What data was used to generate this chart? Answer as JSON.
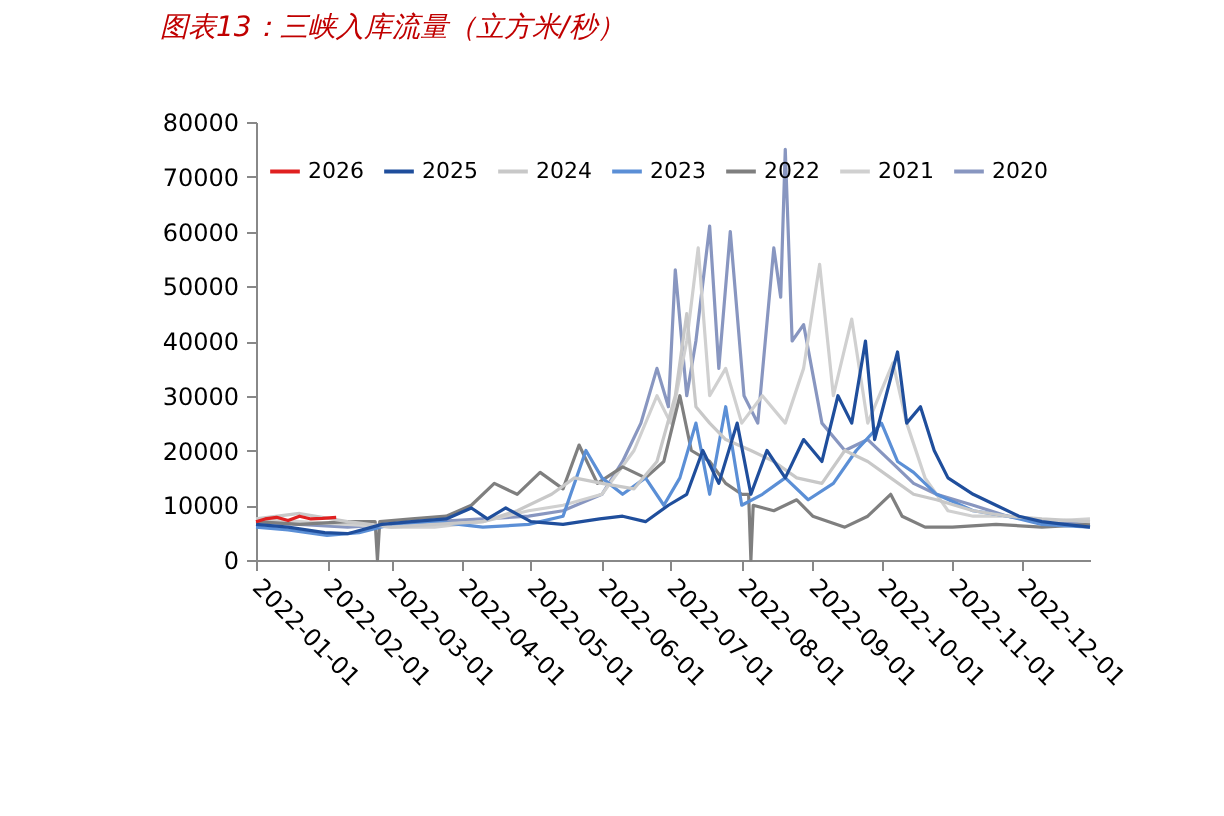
{
  "chart_data": {
    "type": "line",
    "title": "图表13：三峡入库流量（立方米/秒）",
    "xlim": [
      "2022-01-01",
      "2022-12-31"
    ],
    "xticks": [
      "2022-01-01",
      "2022-02-01",
      "2022-03-01",
      "2022-04-01",
      "2022-05-01",
      "2022-06-01",
      "2022-07-01",
      "2022-08-01",
      "2022-09-01",
      "2022-10-01",
      "2022-11-01",
      "2022-12-01"
    ],
    "ylim": [
      0,
      80000
    ],
    "yticks": [
      0,
      10000,
      20000,
      30000,
      40000,
      50000,
      60000,
      70000,
      80000
    ],
    "grid": false,
    "legend": "top",
    "marker": "none",
    "line_style": "solid",
    "series": [
      {
        "name": "2026",
        "color": "#e02020",
        "x": [
          "2022-01-01",
          "2022-01-05",
          "2022-01-10",
          "2022-01-15",
          "2022-01-20",
          "2022-01-25",
          "2022-01-30",
          "2022-02-05"
        ],
        "values": [
          7000,
          7500,
          7800,
          7200,
          8000,
          7500,
          7600,
          7800
        ]
      },
      {
        "name": "2025",
        "color": "#1f4e9c",
        "x": [
          "2022-01-01",
          "2022-01-15",
          "2022-01-31",
          "2022-02-10",
          "2022-02-25",
          "2022-03-10",
          "2022-03-25",
          "2022-04-05",
          "2022-04-12",
          "2022-04-20",
          "2022-05-01",
          "2022-05-15",
          "2022-05-31",
          "2022-06-10",
          "2022-06-20",
          "2022-06-30",
          "2022-07-08",
          "2022-07-15",
          "2022-07-22",
          "2022-07-30",
          "2022-08-05",
          "2022-08-12",
          "2022-08-20",
          "2022-08-28",
          "2022-09-05",
          "2022-09-12",
          "2022-09-18",
          "2022-09-24",
          "2022-09-28",
          "2022-10-03",
          "2022-10-08",
          "2022-10-12",
          "2022-10-18",
          "2022-10-24",
          "2022-10-30",
          "2022-11-10",
          "2022-11-20",
          "2022-11-30",
          "2022-12-10",
          "2022-12-20",
          "2022-12-31"
        ],
        "values": [
          6500,
          6000,
          5000,
          4800,
          6500,
          7000,
          7500,
          9500,
          7500,
          9500,
          7000,
          6500,
          7500,
          8000,
          7000,
          10000,
          12000,
          20000,
          14000,
          25000,
          12000,
          20000,
          15000,
          22000,
          18000,
          30000,
          25000,
          40000,
          22000,
          30000,
          38000,
          25000,
          28000,
          20000,
          15000,
          12000,
          10000,
          8000,
          7000,
          6500,
          6000
        ]
      },
      {
        "name": "2024",
        "color": "#c8c8c8",
        "x": [
          "2022-01-01",
          "2022-01-20",
          "2022-02-10",
          "2022-03-01",
          "2022-03-20",
          "2022-04-10",
          "2022-04-25",
          "2022-05-10",
          "2022-05-20",
          "2022-06-01",
          "2022-06-15",
          "2022-06-25",
          "2022-07-03",
          "2022-07-08",
          "2022-07-12",
          "2022-07-18",
          "2022-07-25",
          "2022-08-05",
          "2022-08-15",
          "2022-08-25",
          "2022-09-05",
          "2022-09-15",
          "2022-09-25",
          "2022-10-05",
          "2022-10-15",
          "2022-10-25",
          "2022-11-10",
          "2022-11-25",
          "2022-12-10",
          "2022-12-31"
        ],
        "values": [
          7500,
          8500,
          7000,
          6000,
          6500,
          7000,
          9000,
          12000,
          15000,
          14000,
          13000,
          18000,
          30000,
          45000,
          28000,
          25000,
          22000,
          20000,
          18000,
          15000,
          14000,
          20000,
          18000,
          15000,
          12000,
          11000,
          9000,
          8000,
          7500,
          7000
        ]
      },
      {
        "name": "2023",
        "color": "#5b8fd6",
        "x": [
          "2022-01-01",
          "2022-01-15",
          "2022-02-01",
          "2022-02-15",
          "2022-03-01",
          "2022-03-20",
          "2022-04-10",
          "2022-04-30",
          "2022-05-15",
          "2022-05-25",
          "2022-06-01",
          "2022-06-10",
          "2022-06-20",
          "2022-06-28",
          "2022-07-05",
          "2022-07-12",
          "2022-07-18",
          "2022-07-25",
          "2022-08-01",
          "2022-08-10",
          "2022-08-20",
          "2022-08-30",
          "2022-09-10",
          "2022-09-20",
          "2022-10-01",
          "2022-10-08",
          "2022-10-15",
          "2022-10-25",
          "2022-11-10",
          "2022-11-25",
          "2022-12-10",
          "2022-12-31"
        ],
        "values": [
          6000,
          5500,
          4500,
          5000,
          6500,
          7000,
          6000,
          6500,
          8000,
          20000,
          15000,
          12000,
          15000,
          10000,
          15000,
          25000,
          12000,
          28000,
          10000,
          12000,
          15000,
          11000,
          14000,
          20000,
          25000,
          18000,
          16000,
          12000,
          9000,
          8000,
          6500,
          6000
        ]
      },
      {
        "name": "2022",
        "color": "#7f7f7f",
        "x": [
          "2022-01-01",
          "2022-01-20",
          "2022-02-10",
          "2022-02-22",
          "2022-02-23",
          "2022-02-24",
          "2022-03-10",
          "2022-03-25",
          "2022-04-05",
          "2022-04-15",
          "2022-04-25",
          "2022-05-05",
          "2022-05-15",
          "2022-05-22",
          "2022-05-30",
          "2022-06-10",
          "2022-06-20",
          "2022-06-28",
          "2022-07-05",
          "2022-07-10",
          "2022-07-18",
          "2022-07-25",
          "2022-08-01",
          "2022-08-04",
          "2022-08-05",
          "2022-08-06",
          "2022-08-15",
          "2022-08-25",
          "2022-09-01",
          "2022-09-15",
          "2022-09-25",
          "2022-10-05",
          "2022-10-10",
          "2022-10-20",
          "2022-11-01",
          "2022-11-20",
          "2022-12-10",
          "2022-12-31"
        ],
        "values": [
          7000,
          6500,
          7000,
          7000,
          0,
          7000,
          7500,
          8000,
          10000,
          14000,
          12000,
          16000,
          13000,
          21000,
          14000,
          17000,
          15000,
          18000,
          30000,
          20000,
          18000,
          14000,
          12000,
          12000,
          0,
          10000,
          9000,
          11000,
          8000,
          6000,
          8000,
          12000,
          8000,
          6000,
          6000,
          6500,
          6000,
          6500
        ]
      },
      {
        "name": "2021",
        "color": "#d0d0d0",
        "x": [
          "2022-01-01",
          "2022-01-20",
          "2022-02-10",
          "2022-03-01",
          "2022-03-20",
          "2022-04-10",
          "2022-04-30",
          "2022-05-15",
          "2022-06-01",
          "2022-06-15",
          "2022-06-25",
          "2022-07-01",
          "2022-07-08",
          "2022-07-13",
          "2022-07-18",
          "2022-07-25",
          "2022-08-01",
          "2022-08-10",
          "2022-08-20",
          "2022-08-28",
          "2022-09-04",
          "2022-09-10",
          "2022-09-18",
          "2022-09-25",
          "2022-10-06",
          "2022-10-12",
          "2022-10-20",
          "2022-10-30",
          "2022-11-10",
          "2022-11-25",
          "2022-12-10",
          "2022-12-31"
        ],
        "values": [
          7500,
          7000,
          6500,
          6000,
          6000,
          7000,
          9000,
          10000,
          12000,
          20000,
          30000,
          25000,
          40000,
          57000,
          30000,
          35000,
          25000,
          30000,
          25000,
          35000,
          54000,
          30000,
          44000,
          25000,
          36000,
          25000,
          15000,
          9000,
          8000,
          8000,
          7000,
          7500
        ]
      },
      {
        "name": "2020",
        "color": "#8896c0",
        "x": [
          "2022-01-01",
          "2022-01-20",
          "2022-02-10",
          "2022-03-01",
          "2022-03-20",
          "2022-04-10",
          "2022-04-30",
          "2022-05-15",
          "2022-06-01",
          "2022-06-10",
          "2022-06-18",
          "2022-06-25",
          "2022-06-30",
          "2022-07-03",
          "2022-07-08",
          "2022-07-12",
          "2022-07-18",
          "2022-07-22",
          "2022-07-27",
          "2022-08-02",
          "2022-08-08",
          "2022-08-15",
          "2022-08-18",
          "2022-08-20",
          "2022-08-23",
          "2022-08-28",
          "2022-09-05",
          "2022-09-15",
          "2022-09-25",
          "2022-10-05",
          "2022-10-15",
          "2022-10-25",
          "2022-11-10",
          "2022-11-25",
          "2022-12-10",
          "2022-12-31"
        ],
        "values": [
          7000,
          6500,
          6000,
          6500,
          7000,
          7500,
          8000,
          9000,
          12000,
          18000,
          25000,
          35000,
          28000,
          53000,
          30000,
          40000,
          61000,
          35000,
          60000,
          30000,
          25000,
          57000,
          48000,
          75000,
          40000,
          43000,
          25000,
          20000,
          22000,
          18000,
          14000,
          12000,
          10000,
          8000,
          7000,
          6500
        ]
      }
    ]
  }
}
